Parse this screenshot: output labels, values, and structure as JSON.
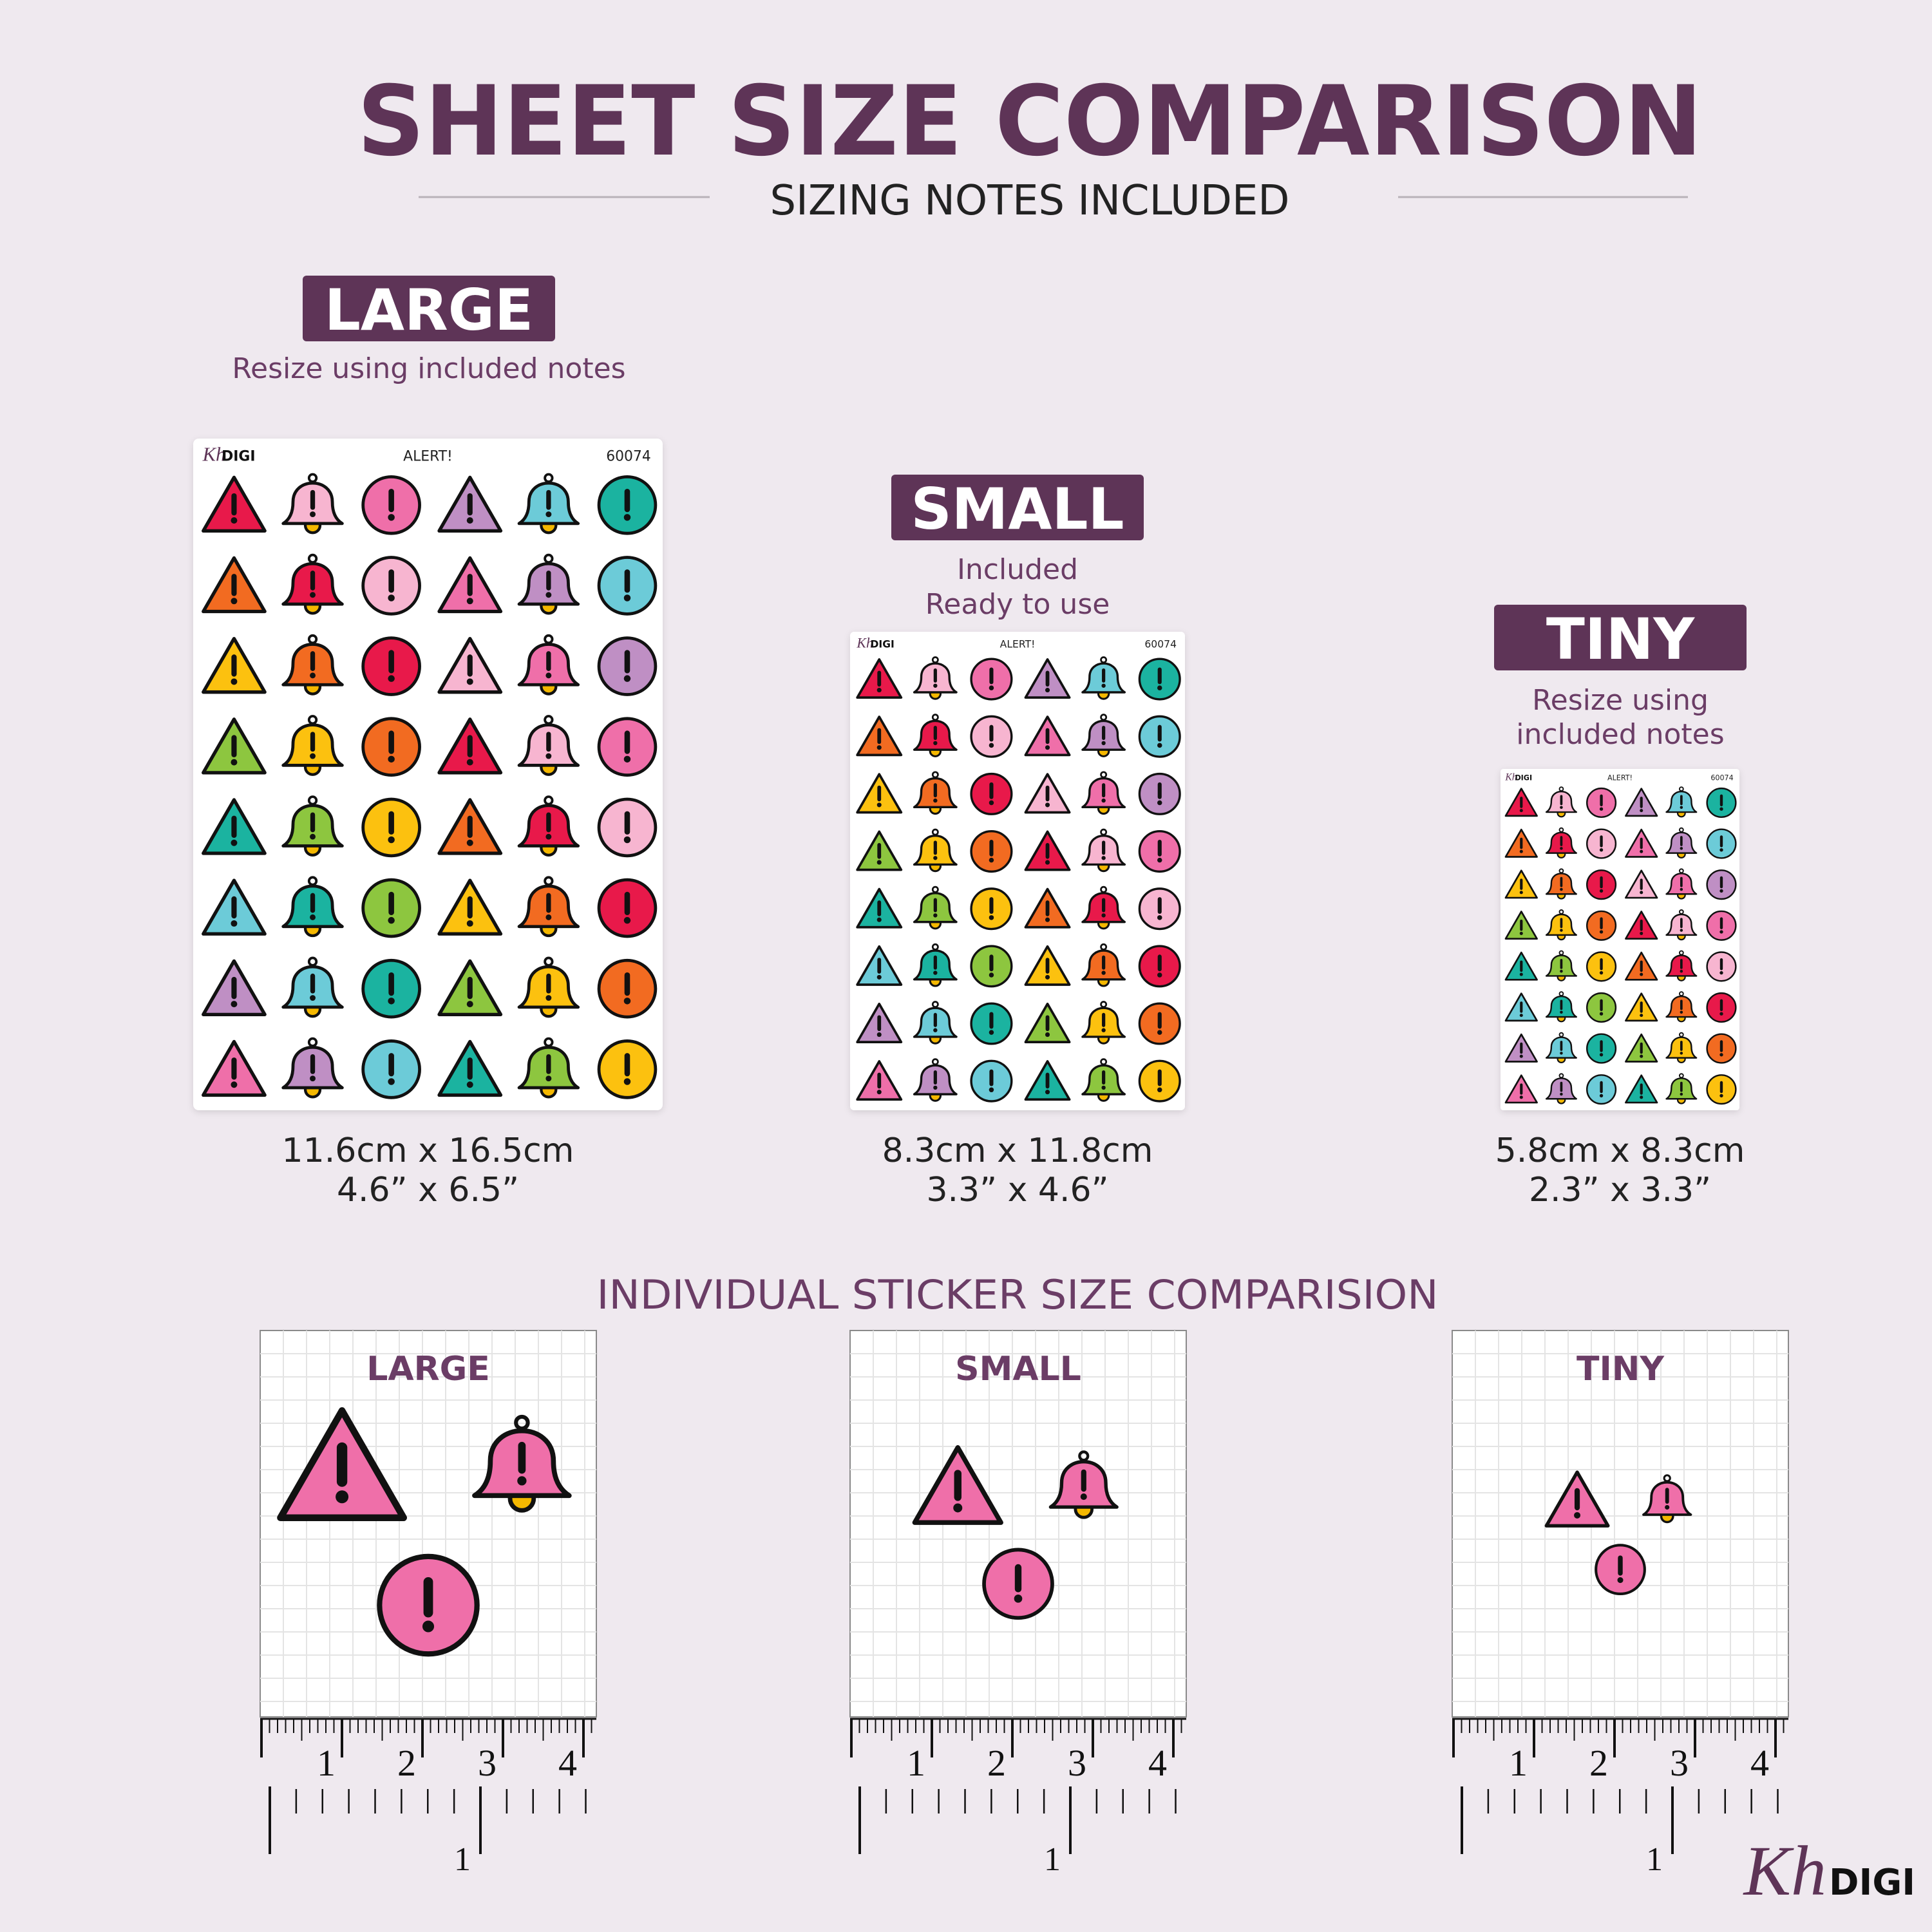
{
  "header": {
    "title": "SHEET SIZE COMPARISON",
    "subtitle": "SIZING NOTES INCLUDED"
  },
  "sheet_header": {
    "title": "ALERT!",
    "code": "60074"
  },
  "sheets": [
    {
      "label": "LARGE",
      "note": [
        "Resize using included notes"
      ],
      "size_cm": "11.6cm x 16.5cm",
      "size_in": "4.6” x 6.5”"
    },
    {
      "label": "SMALL",
      "note": [
        "Included",
        "Ready to use"
      ],
      "size_cm": "8.3cm x 11.8cm",
      "size_in": "3.3” x 4.6”"
    },
    {
      "label": "TINY",
      "note": [
        "Resize using",
        "included notes"
      ],
      "size_cm": "5.8cm x 8.3cm",
      "size_in": "2.3” x 3.3”"
    }
  ],
  "comparison": {
    "title": "INDIVIDUAL STICKER SIZE COMPARISION",
    "panels": [
      {
        "label": "LARGE"
      },
      {
        "label": "SMALL"
      },
      {
        "label": "TINY"
      }
    ],
    "ruler": {
      "cm_labels": [
        1,
        2,
        3,
        4
      ],
      "inch_label": 1
    }
  },
  "logo": {
    "script": "Kh",
    "text": "DIGI"
  }
}
